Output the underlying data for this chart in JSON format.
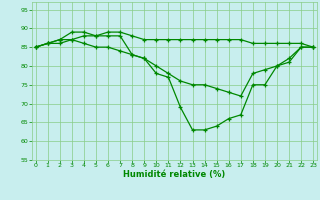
{
  "bg_color": "#c8eeee",
  "grid_color": "#88cc88",
  "line_color": "#008800",
  "marker_color": "#008800",
  "xlabel": "Humidité relative (%)",
  "xlabel_color": "#008800",
  "tick_color": "#008800",
  "xlim": [
    -0.3,
    23.3
  ],
  "ylim": [
    55,
    97
  ],
  "yticks": [
    55,
    60,
    65,
    70,
    75,
    80,
    85,
    90,
    95
  ],
  "xticks": [
    0,
    1,
    2,
    3,
    4,
    5,
    6,
    7,
    8,
    9,
    10,
    11,
    12,
    13,
    14,
    15,
    16,
    17,
    18,
    19,
    20,
    21,
    22,
    23
  ],
  "line1_top": [
    85,
    86,
    87,
    89,
    89,
    88,
    89,
    89,
    88,
    87,
    87,
    87,
    87,
    87,
    87,
    87,
    87,
    87,
    86,
    86,
    86,
    86,
    86,
    85
  ],
  "line2_mid": [
    85,
    86,
    87,
    87,
    88,
    88,
    88,
    88,
    83,
    82,
    80,
    78,
    76,
    75,
    75,
    74,
    73,
    72,
    78,
    79,
    80,
    82,
    85,
    85
  ],
  "line3_bot": [
    85,
    86,
    86,
    87,
    86,
    85,
    85,
    84,
    83,
    82,
    78,
    77,
    69,
    63,
    63,
    64,
    66,
    67,
    75,
    75,
    80,
    81,
    85,
    85
  ]
}
